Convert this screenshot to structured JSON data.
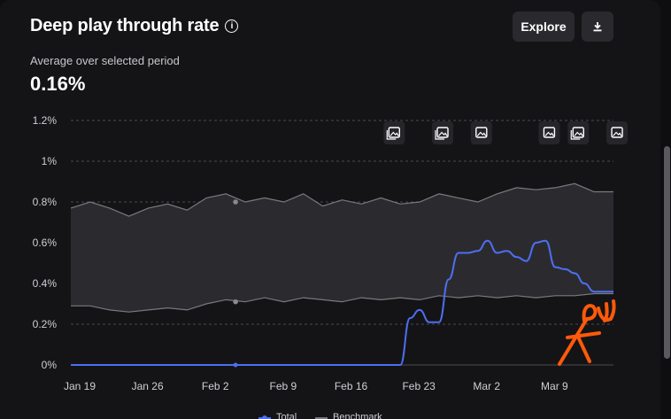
{
  "header": {
    "title": "Deep play through rate",
    "info_glyph": "i",
    "explore_label": "Explore",
    "subtitle": "Average over selected period",
    "value": "0.16%"
  },
  "icons": {
    "info": "info-icon",
    "download": "download-icon",
    "annotation": "image-annotation-icon",
    "annotation_stack": "stacked-images-icon"
  },
  "colors": {
    "total": "#4e6ef2",
    "benchmark_band": "#2c2c30",
    "benchmark_line": "#7a7a7e",
    "annotation": "#ff5a0a"
  },
  "chart_data": {
    "type": "line",
    "title": "Deep play through rate",
    "xlabel": "",
    "ylabel": "",
    "ylim": [
      0,
      1.2
    ],
    "yticks": [
      0,
      0.2,
      0.4,
      0.6,
      0.8,
      1.0,
      1.2
    ],
    "ytick_labels": [
      "0%",
      "0.2%",
      "0.4%",
      "0.6%",
      "0.8%",
      "1%",
      "1.2%"
    ],
    "xlim": [
      0,
      56
    ],
    "xticks": [
      0,
      7,
      14,
      21,
      28,
      35,
      42,
      49
    ],
    "xtick_labels": [
      "Jan 19",
      "Jan 26",
      "Feb 2",
      "Feb 9",
      "Feb 16",
      "Feb 23",
      "Mar 2",
      "Mar 9"
    ],
    "legend": [
      "Total",
      "Benchmark"
    ],
    "legend_position": "bottom",
    "series": [
      {
        "name": "Total",
        "x": [
          0,
          34,
          35,
          36,
          37,
          38,
          39,
          40,
          41,
          42,
          43,
          44,
          45,
          46,
          47,
          48,
          49,
          50,
          51,
          52,
          53,
          54,
          55,
          56
        ],
        "values": [
          0,
          0,
          0.23,
          0.27,
          0.21,
          0.21,
          0.42,
          0.55,
          0.55,
          0.56,
          0.61,
          0.55,
          0.56,
          0.53,
          0.51,
          0.6,
          0.61,
          0.48,
          0.47,
          0.45,
          0.4,
          0.36,
          0.36,
          0.36
        ]
      }
    ],
    "benchmark_band": {
      "name": "Benchmark",
      "x": [
        0,
        2,
        4,
        6,
        8,
        10,
        12,
        14,
        16,
        18,
        20,
        22,
        24,
        26,
        28,
        30,
        32,
        34,
        36,
        38,
        40,
        42,
        44,
        46,
        48,
        50,
        52,
        54,
        56
      ],
      "upper": [
        0.77,
        0.8,
        0.77,
        0.73,
        0.77,
        0.79,
        0.76,
        0.82,
        0.84,
        0.8,
        0.82,
        0.8,
        0.84,
        0.78,
        0.81,
        0.79,
        0.82,
        0.79,
        0.8,
        0.84,
        0.82,
        0.8,
        0.84,
        0.87,
        0.86,
        0.87,
        0.89,
        0.85,
        0.85
      ],
      "lower": [
        0.29,
        0.29,
        0.27,
        0.26,
        0.27,
        0.28,
        0.27,
        0.3,
        0.32,
        0.31,
        0.33,
        0.31,
        0.33,
        0.32,
        0.31,
        0.33,
        0.32,
        0.33,
        0.32,
        0.34,
        0.33,
        0.34,
        0.33,
        0.34,
        0.33,
        0.34,
        0.34,
        0.35,
        0.35
      ]
    },
    "annotations_x": [
      32,
      37,
      41,
      48,
      51,
      55
    ],
    "markers_x": [
      17,
      17
    ]
  }
}
